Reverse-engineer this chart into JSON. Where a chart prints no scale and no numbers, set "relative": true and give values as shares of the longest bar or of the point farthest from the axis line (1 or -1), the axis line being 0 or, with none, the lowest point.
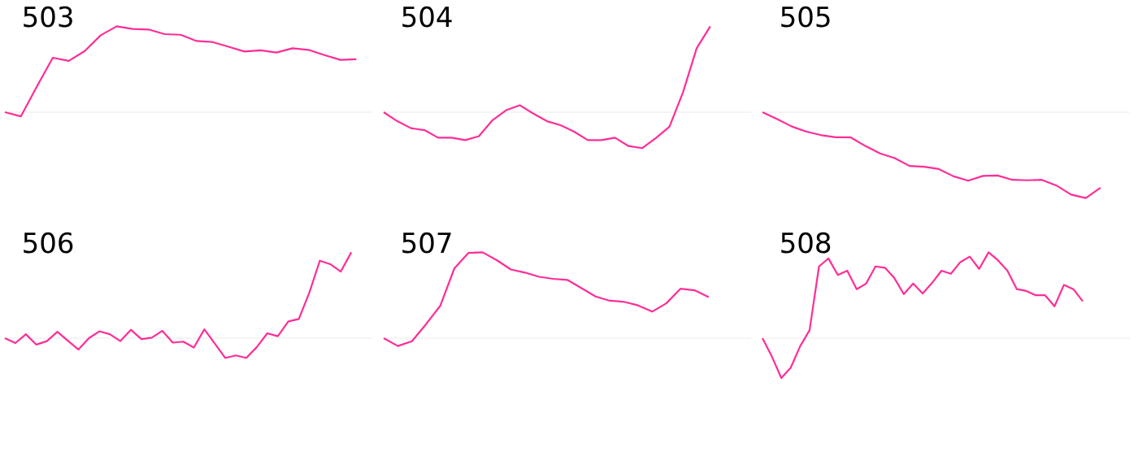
{
  "chart_data": [
    {
      "type": "line",
      "title": "503",
      "relative": true,
      "categories": [
        null,
        null,
        null,
        null,
        null,
        null,
        null,
        null,
        null,
        null,
        null,
        null,
        null,
        null,
        null,
        null,
        null,
        null,
        null,
        null,
        null,
        null,
        null,
        null
      ],
      "series": [
        {
          "color": "#ff2d96",
          "values": [
            0,
            -0.049,
            0.299,
            0.634,
            0.598,
            0.713,
            0.896,
            1,
            0.97,
            0.963,
            0.909,
            0.902,
            0.829,
            0.817,
            0.762,
            0.707,
            0.72,
            0.695,
            0.744,
            0.726,
            0.665,
            0.61,
            0.616,
            null
          ]
        }
      ]
    },
    {
      "type": "line",
      "title": "504",
      "relative": true,
      "categories": [
        null,
        null,
        null,
        null,
        null,
        null,
        null,
        null,
        null,
        null,
        null,
        null,
        null,
        null,
        null,
        null,
        null,
        null,
        null,
        null,
        null,
        null,
        null,
        null,
        null,
        null,
        null,
        null
      ],
      "series": [
        {
          "color": "#ff2d96",
          "values": [
            0,
            -0.105,
            -0.186,
            -0.209,
            -0.297,
            -0.297,
            -0.326,
            -0.279,
            -0.093,
            0.023,
            0.081,
            -0.017,
            -0.105,
            -0.151,
            -0.227,
            -0.326,
            -0.326,
            -0.297,
            -0.395,
            -0.419,
            -0.302,
            -0.169,
            0.233,
            0.744,
            1,
            null,
            null,
            null
          ]
        }
      ]
    },
    {
      "type": "line",
      "title": "505",
      "relative": true,
      "categories": [
        null,
        null,
        null,
        null,
        null,
        null,
        null,
        null,
        null,
        null,
        null,
        null,
        null,
        null,
        null,
        null,
        null,
        null,
        null,
        null,
        null,
        null,
        null,
        null,
        null,
        null
      ],
      "series": [
        {
          "color": "#ff2d96",
          "values": [
            0,
            -0.081,
            -0.167,
            -0.227,
            -0.268,
            -0.293,
            -0.293,
            -0.394,
            -0.48,
            -0.535,
            -0.626,
            -0.636,
            -0.662,
            -0.747,
            -0.798,
            -0.742,
            -0.737,
            -0.788,
            -0.793,
            -0.788,
            -0.854,
            -0.96,
            -1,
            -0.879,
            null,
            null
          ]
        }
      ]
    },
    {
      "type": "line",
      "title": "506",
      "relative": true,
      "categories": [
        null,
        null,
        null,
        null,
        null,
        null,
        null,
        null,
        null,
        null,
        null,
        null,
        null,
        null,
        null,
        null,
        null,
        null,
        null,
        null,
        null,
        null,
        null,
        null,
        null,
        null,
        null,
        null,
        null,
        null,
        null,
        null,
        null,
        null,
        null,
        null
      ],
      "series": [
        {
          "color": "#ff2d96",
          "values": [
            0,
            -0.057,
            0.046,
            -0.075,
            -0.034,
            0.075,
            -0.029,
            -0.132,
            0,
            0.08,
            0.046,
            -0.034,
            0.098,
            -0.011,
            0.006,
            0.086,
            -0.052,
            -0.04,
            -0.109,
            0.103,
            -0.063,
            -0.23,
            -0.201,
            -0.23,
            -0.103,
            0.057,
            0.023,
            0.195,
            0.224,
            0.529,
            0.902,
            0.862,
            0.776,
            1,
            null,
            null
          ]
        }
      ]
    },
    {
      "type": "line",
      "title": "507",
      "relative": true,
      "categories": [
        null,
        null,
        null,
        null,
        null,
        null,
        null,
        null,
        null,
        null,
        null,
        null,
        null,
        null,
        null,
        null,
        null,
        null,
        null,
        null,
        null,
        null,
        null,
        null,
        null,
        null,
        null
      ],
      "series": [
        {
          "color": "#ff2d96",
          "values": [
            0,
            -0.091,
            -0.036,
            0.164,
            0.376,
            0.812,
            0.994,
            1,
            0.909,
            0.8,
            0.764,
            0.715,
            0.691,
            0.679,
            0.582,
            0.485,
            0.436,
            0.424,
            0.382,
            0.309,
            0.406,
            0.576,
            0.558,
            0.479,
            null,
            null,
            null
          ]
        }
      ]
    },
    {
      "type": "line",
      "title": "508",
      "relative": true,
      "categories": [
        null,
        null,
        null,
        null,
        null,
        null,
        null,
        null,
        null,
        null,
        null,
        null,
        null,
        null,
        null,
        null,
        null,
        null,
        null,
        null,
        null,
        null,
        null,
        null,
        null,
        null,
        null,
        null,
        null,
        null,
        null,
        null,
        null,
        null,
        null,
        null,
        null,
        null,
        null,
        null
      ],
      "series": [
        {
          "color": "#ff2d96",
          "values": [
            0,
            -0.214,
            -0.464,
            -0.343,
            -0.093,
            0.093,
            0.836,
            0.929,
            0.736,
            0.786,
            0.571,
            0.636,
            0.836,
            0.821,
            0.7,
            0.514,
            0.636,
            0.521,
            0.643,
            0.786,
            0.75,
            0.886,
            0.95,
            0.807,
            1,
            0.907,
            0.786,
            0.571,
            0.55,
            0.5,
            0.5,
            0.371,
            0.621,
            0.571,
            0.429,
            null,
            null,
            null,
            null,
            null
          ]
        }
      ]
    }
  ]
}
